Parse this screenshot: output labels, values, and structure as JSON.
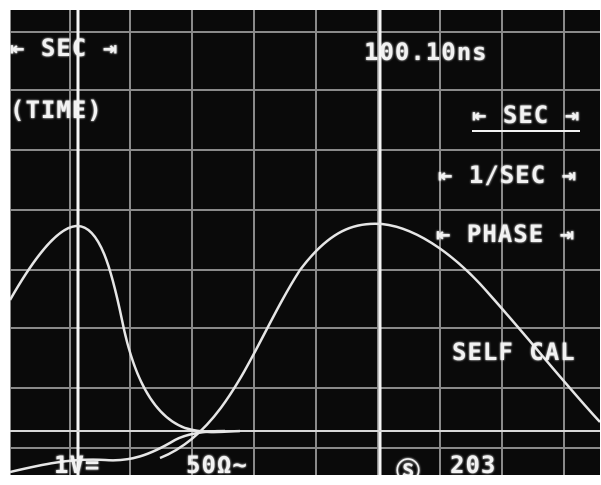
{
  "readout": {
    "mode_label": "⇤ SEC ⇥",
    "mode_caption": "(TIME)",
    "timebase_value": "100.10ns"
  },
  "softkeys": [
    {
      "label": "⇤ SEC ⇥",
      "selected": true
    },
    {
      "label": "⇤ 1/SEC ⇥",
      "selected": false
    },
    {
      "label": "⇤ PHASE ⇥",
      "selected": false
    }
  ],
  "self_cal_label": "SELF CAL",
  "status_line": {
    "ch1_scale": "1V=",
    "ch2_scale": "50Ω~",
    "trigger_symbol": "Ⓢ",
    "trigger_value": "203"
  },
  "colors": {
    "screen_bg": "#0a0a0a",
    "graticule": "#8a8a8a",
    "trace": "#e6e6e6"
  }
}
